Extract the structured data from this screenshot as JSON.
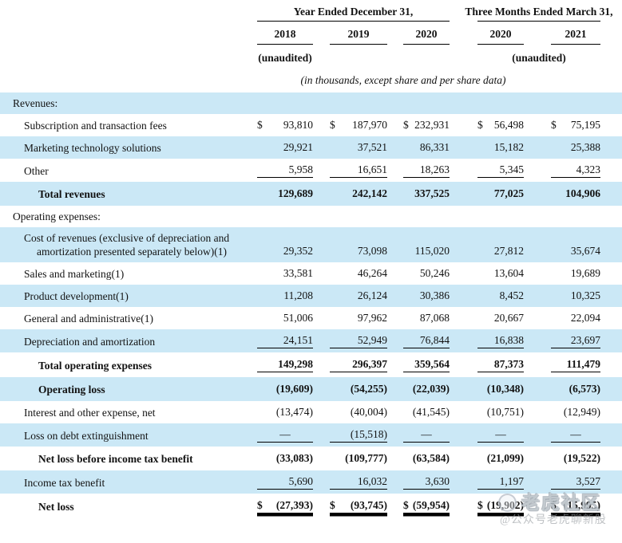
{
  "currency_symbol": "$",
  "colors": {
    "row_highlight": "#cbe8f6",
    "text": "#121212"
  },
  "header": {
    "group_annual": "Year Ended December 31,",
    "group_quarterly": "Three Months Ended March 31,",
    "years": [
      "2018",
      "2019",
      "2020",
      "2020",
      "2021"
    ],
    "unaudited_left": "(unaudited)",
    "unaudited_right": "(unaudited)",
    "units_note": "(in thousands, except share and per share data)"
  },
  "rows": [
    {
      "label": "Revenues:",
      "style": "section",
      "bg": "blue",
      "values": [
        "",
        "",
        "",
        "",
        ""
      ]
    },
    {
      "label": "Subscription and transaction fees",
      "style": "item",
      "bg": "white",
      "dollar": true,
      "values": [
        "93,810",
        "187,970",
        "232,931",
        "56,498",
        "75,195"
      ]
    },
    {
      "label": "Marketing technology solutions",
      "style": "item",
      "bg": "blue",
      "values": [
        "29,921",
        "37,521",
        "86,331",
        "15,182",
        "25,388"
      ]
    },
    {
      "label": "Other",
      "style": "item",
      "bg": "white",
      "underline": "single",
      "values": [
        "5,958",
        "16,651",
        "18,263",
        "5,345",
        "4,323"
      ]
    },
    {
      "label": "Total revenues",
      "style": "total",
      "bg": "blue",
      "values": [
        "129,689",
        "242,142",
        "337,525",
        "77,025",
        "104,906"
      ]
    },
    {
      "label": "Operating expenses:",
      "style": "section",
      "bg": "white",
      "values": [
        "",
        "",
        "",
        "",
        ""
      ]
    },
    {
      "label": "Cost of revenues (exclusive of depreciation and amortization presented separately below)(1)",
      "style": "itemwrap",
      "bg": "blue",
      "values": [
        "29,352",
        "73,098",
        "115,020",
        "27,812",
        "35,674"
      ]
    },
    {
      "label": "Sales and marketing(1)",
      "style": "item",
      "bg": "white",
      "values": [
        "33,581",
        "46,264",
        "50,246",
        "13,604",
        "19,689"
      ]
    },
    {
      "label": "Product development(1)",
      "style": "item",
      "bg": "blue",
      "values": [
        "11,208",
        "26,124",
        "30,386",
        "8,452",
        "10,325"
      ]
    },
    {
      "label": "General and administrative(1)",
      "style": "item",
      "bg": "white",
      "values": [
        "51,006",
        "97,962",
        "87,068",
        "20,667",
        "22,094"
      ]
    },
    {
      "label": "Depreciation and amortization",
      "style": "item",
      "bg": "blue",
      "underline": "single",
      "values": [
        "24,151",
        "52,949",
        "76,844",
        "16,838",
        "23,697"
      ]
    },
    {
      "label": "Total operating expenses",
      "style": "total",
      "bg": "white",
      "underline": "single",
      "values": [
        "149,298",
        "296,397",
        "359,564",
        "87,373",
        "111,479"
      ]
    },
    {
      "label": "Operating loss",
      "style": "total",
      "bg": "blue",
      "values": [
        "(19,609)",
        "(54,255)",
        "(22,039)",
        "(10,348)",
        "(6,573)"
      ]
    },
    {
      "label": "Interest and other expense, net",
      "style": "item",
      "bg": "white",
      "values": [
        "(13,474)",
        "(40,004)",
        "(41,545)",
        "(10,751)",
        "(12,949)"
      ]
    },
    {
      "label": "Loss on debt extinguishment",
      "style": "item",
      "bg": "blue",
      "underline": "single",
      "values": [
        "—",
        "(15,518)",
        "—",
        "—",
        "—"
      ]
    },
    {
      "label": "Net loss before income tax benefit",
      "style": "total",
      "bg": "white",
      "values": [
        "(33,083)",
        "(109,777)",
        "(63,584)",
        "(21,099)",
        "(19,522)"
      ]
    },
    {
      "label": "Income tax benefit",
      "style": "item",
      "bg": "blue",
      "underline": "single",
      "values": [
        "5,690",
        "16,032",
        "3,630",
        "1,197",
        "3,527"
      ]
    },
    {
      "label": "Net loss",
      "style": "total",
      "bg": "white",
      "dollar": true,
      "underline": "double",
      "values": [
        "(27,393)",
        "(93,745)",
        "(59,954)",
        "(19,902)",
        "(15,995)"
      ]
    }
  ],
  "watermark": {
    "logo_text": "老虎社区",
    "account_text": "@公众号老虎聊新股"
  }
}
